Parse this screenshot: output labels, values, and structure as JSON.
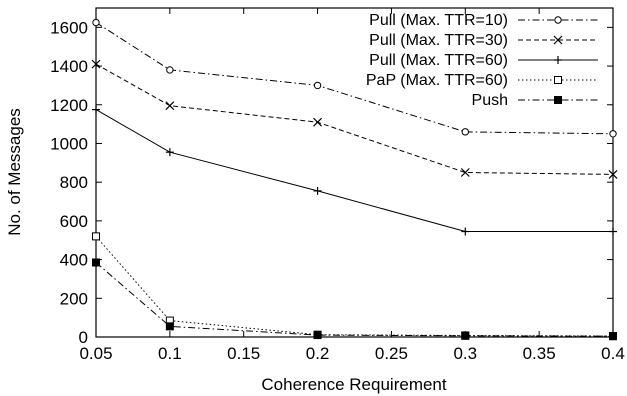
{
  "chart_data": {
    "type": "line",
    "xlabel": "Coherence Requirement",
    "ylabel": "No. of Messages",
    "xlim": [
      0.05,
      0.4
    ],
    "ylim": [
      0,
      1700
    ],
    "x_ticks": [
      "0.05",
      "0.1",
      "0.15",
      "0.2",
      "0.25",
      "0.3",
      "0.35",
      "0.4"
    ],
    "y_ticks": [
      "0",
      "200",
      "400",
      "600",
      "800",
      "1000",
      "1200",
      "1400",
      "1600"
    ],
    "grid": false,
    "legend_position": "top-right",
    "x": [
      0.05,
      0.1,
      0.2,
      0.3,
      0.4
    ],
    "series": [
      {
        "name": "Pull (Max. TTR=10)",
        "marker": "circle",
        "dash": "dashdot",
        "values": [
          1625,
          1380,
          1300,
          1060,
          1050
        ]
      },
      {
        "name": "Pull (Max. TTR=30)",
        "marker": "x",
        "dash": "dashed",
        "values": [
          1410,
          1195,
          1110,
          850,
          840
        ]
      },
      {
        "name": "Pull (Max. TTR=60)",
        "marker": "plus",
        "dash": "solid",
        "values": [
          1175,
          955,
          755,
          545,
          545
        ]
      },
      {
        "name": "PaP (Max. TTR=60)",
        "marker": "square-open",
        "dash": "dotted",
        "values": [
          520,
          85,
          12,
          8,
          5
        ]
      },
      {
        "name": "Push",
        "marker": "square-filled",
        "dash": "dashdot",
        "values": [
          385,
          55,
          10,
          6,
          4
        ]
      }
    ]
  }
}
